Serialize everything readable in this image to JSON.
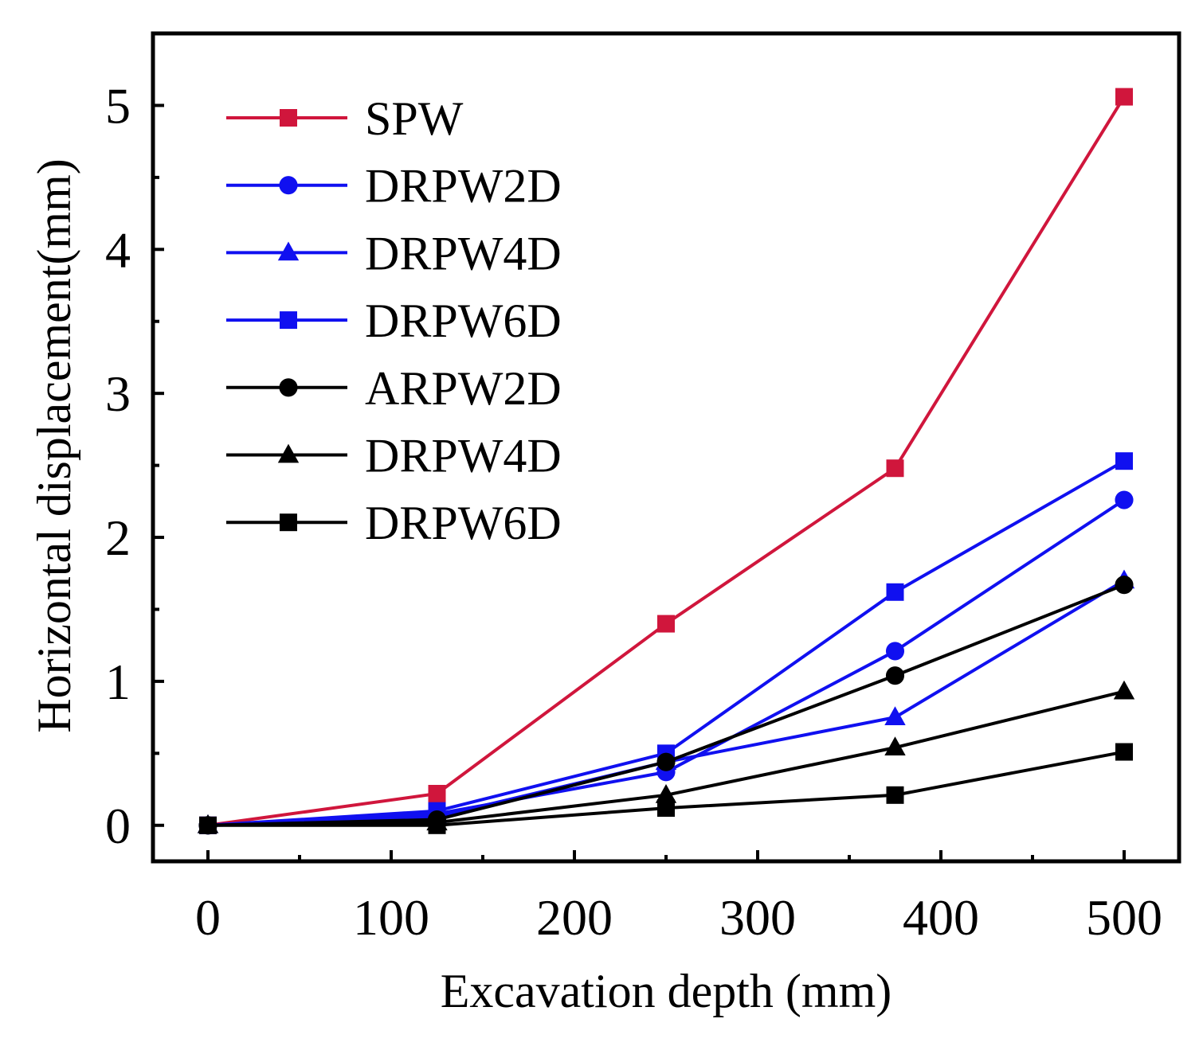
{
  "chart_data": {
    "type": "line",
    "title": "",
    "xlabel": "Excavation depth (mm)",
    "ylabel": "Horizontal displacement(mm)",
    "xlim": [
      -30,
      530
    ],
    "ylim": [
      -0.25,
      5.5
    ],
    "xticks": [
      0,
      100,
      200,
      300,
      400,
      500
    ],
    "yticks": [
      0,
      1,
      2,
      3,
      4,
      5
    ],
    "x_minor_ticks": [
      50,
      150,
      250,
      350,
      450
    ],
    "y_minor_ticks": [
      0.5,
      1.5,
      2.5,
      3.5,
      4.5
    ],
    "grid": false,
    "legend_position": "top-left",
    "x": [
      0,
      125,
      250,
      375,
      500
    ],
    "series": [
      {
        "name": "SPW",
        "color": "#d0163c",
        "marker": "square",
        "values": [
          0,
          0.22,
          1.4,
          2.48,
          5.06
        ]
      },
      {
        "name": "DRPW2D",
        "color": "#1010f0",
        "marker": "circle",
        "values": [
          0,
          0.08,
          0.37,
          1.21,
          2.26
        ]
      },
      {
        "name": "DRPW4D",
        "color": "#1010f0",
        "marker": "triangle",
        "values": [
          0,
          0.06,
          0.44,
          0.75,
          1.7
        ]
      },
      {
        "name": "DRPW6D",
        "color": "#1010f0",
        "marker": "square",
        "values": [
          0,
          0.1,
          0.5,
          1.62,
          2.53
        ]
      },
      {
        "name": "ARPW2D",
        "color": "#000000",
        "marker": "circle",
        "values": [
          0,
          0.04,
          0.44,
          1.04,
          1.67
        ]
      },
      {
        "name": "DRPW4D",
        "color": "#000000",
        "marker": "triangle",
        "values": [
          0,
          0.02,
          0.21,
          0.54,
          0.93
        ]
      },
      {
        "name": "DRPW6D",
        "color": "#000000",
        "marker": "square",
        "values": [
          0,
          0.0,
          0.12,
          0.21,
          0.51
        ]
      }
    ]
  }
}
